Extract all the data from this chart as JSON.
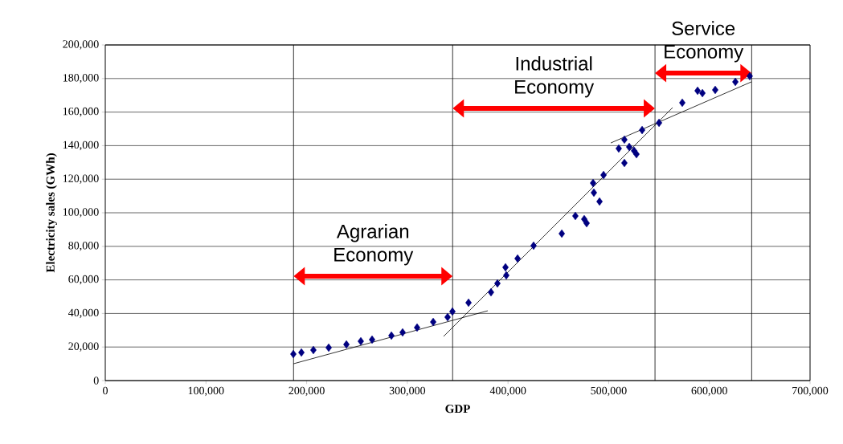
{
  "chart_data": {
    "type": "scatter",
    "xlabel": "GDP",
    "ylabel": "Electricity sales (GWh)",
    "xlim": [
      0,
      700000
    ],
    "ylim": [
      0,
      200000
    ],
    "xticks": [
      0,
      {
        "value": 100000,
        "label": "100,000"
      },
      {
        "value": 200000,
        "label": "200,000"
      },
      {
        "value": 300000,
        "label": "300,000"
      },
      {
        "value": 400000,
        "label": "400,000"
      },
      {
        "value": 500000,
        "label": "500,000"
      },
      {
        "value": 600000,
        "label": "600,000"
      },
      {
        "value": 700000,
        "label": "700,000"
      }
    ],
    "yticks": [
      0,
      {
        "value": 20000,
        "label": "20,000"
      },
      {
        "value": 40000,
        "label": "40,000"
      },
      {
        "value": 60000,
        "label": "60,000"
      },
      {
        "value": 80000,
        "label": "80,000"
      },
      {
        "value": 100000,
        "label": "100,000"
      },
      {
        "value": 120000,
        "label": "120,000"
      },
      {
        "value": 140000,
        "label": "140,000"
      },
      {
        "value": 160000,
        "label": "160,000"
      },
      {
        "value": 180000,
        "label": "180,000"
      },
      {
        "value": 200000,
        "label": "200,000"
      }
    ],
    "grid": "y",
    "series": [
      {
        "color": "#000080",
        "marker": "diamond",
        "x": [
          186800,
          194800,
          206700,
          221900,
          239500,
          253800,
          265000,
          284200,
          295300,
          309700,
          325700,
          340000,
          344800,
          360800,
          383100,
          389500,
          398300,
          397500,
          409500,
          425400,
          453400,
          466900,
          475700,
          478100,
          484500,
          485300,
          490900,
          494900,
          510000,
          515600,
          515600,
          520400,
          525200,
          527600,
          533200,
          550000,
          573100,
          588300,
          593100,
          605800,
          625800,
          640100
        ],
        "values": [
          15800,
          16700,
          18200,
          19600,
          21500,
          23400,
          24400,
          26800,
          28700,
          31600,
          34900,
          37800,
          41100,
          46400,
          52600,
          57900,
          62700,
          67500,
          72700,
          80400,
          87600,
          98100,
          96200,
          93800,
          117700,
          112000,
          106700,
          122500,
          138300,
          143600,
          129700,
          139200,
          137000,
          134900,
          149300,
          153600,
          165600,
          172700,
          171300,
          173200,
          178000,
          181400
        ]
      },
      {
        "type": "line",
        "marker": "none",
        "color": "#000000",
        "x": [
          186800,
          379900
        ],
        "values": [
          10000,
          41600
        ]
      },
      {
        "type": "line",
        "marker": "none",
        "color": "#000000",
        "x": [
          336000,
          563500
        ],
        "values": [
          26300,
          162700
        ]
      },
      {
        "type": "line",
        "marker": "none",
        "color": "#000000",
        "x": [
          502100,
          641700
        ],
        "values": [
          141600,
          178000
        ]
      }
    ],
    "ref_lines": [
      {
        "axis": "x",
        "value": 187000,
        "color": "#000000"
      },
      {
        "axis": "x",
        "value": 345000,
        "color": "#000000"
      },
      {
        "axis": "x",
        "value": 546000,
        "color": "#000000"
      },
      {
        "axis": "x",
        "value": 642000,
        "color": "#000000"
      }
    ],
    "annotations": [
      "Agrarian Economy",
      "Industrial Economy",
      "Service Economy"
    ]
  }
}
